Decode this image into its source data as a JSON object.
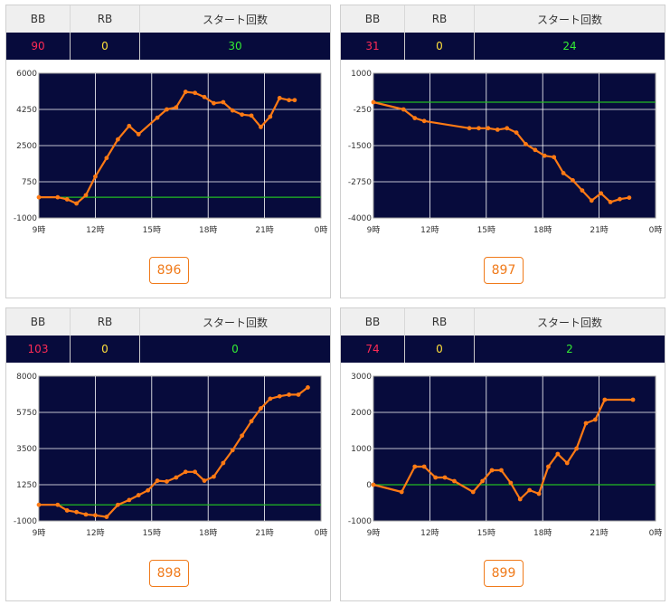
{
  "headers": {
    "bb": "BB",
    "rb": "RB",
    "start": "スタート回数"
  },
  "colors": {
    "plot_bg": "#070b3c",
    "line": "#ff7a14",
    "zero_line": "#22bb22",
    "grid": "#ffffff",
    "bb": "#ff2a55",
    "rb": "#ffe03a",
    "start": "#33ee33",
    "button": "#f07a1a"
  },
  "machines": [
    {
      "number": "896",
      "stats": {
        "bb": "90",
        "rb": "0",
        "start": "30"
      },
      "chart_data": {
        "type": "line",
        "x_tick_labels": [
          "9時",
          "12時",
          "15時",
          "18時",
          "21時",
          "0時"
        ],
        "x_ticks": [
          9,
          12,
          15,
          18,
          21,
          24
        ],
        "y_tick_labels": [
          "6000",
          "4250",
          "2500",
          "750",
          "-1000"
        ],
        "y_ticks": [
          6000,
          4250,
          2500,
          750,
          -1000
        ],
        "xlim": [
          9,
          24
        ],
        "ylim": [
          -1000,
          6000
        ],
        "zero_line": 0,
        "grid": true,
        "series": [
          {
            "x": [
              9,
              10,
              10.5,
              11,
              11.5,
              12,
              12.6,
              13.2,
              13.8,
              14.3,
              15.3,
              15.8,
              16.3,
              16.8,
              17.3,
              17.8,
              18.3,
              18.8,
              19.3,
              19.8,
              20.3,
              20.8,
              21.3,
              21.8,
              22.3,
              22.6
            ],
            "y": [
              0,
              0,
              -100,
              -300,
              100,
              1000,
              1900,
              2800,
              3450,
              3050,
              3850,
              4250,
              4350,
              5100,
              5050,
              4850,
              4550,
              4600,
              4200,
              4000,
              3950,
              3400,
              3900,
              4800,
              4700,
              4700
            ]
          }
        ]
      }
    },
    {
      "number": "897",
      "stats": {
        "bb": "31",
        "rb": "0",
        "start": "24"
      },
      "chart_data": {
        "type": "line",
        "x_tick_labels": [
          "9時",
          "12時",
          "15時",
          "18時",
          "21時",
          "0時"
        ],
        "x_ticks": [
          9,
          12,
          15,
          18,
          21,
          24
        ],
        "y_tick_labels": [
          "1000",
          "-250",
          "-1500",
          "-2750",
          "-4000"
        ],
        "y_ticks": [
          1000,
          -250,
          -1500,
          -2750,
          -4000
        ],
        "xlim": [
          9,
          24
        ],
        "ylim": [
          -4000,
          1000
        ],
        "zero_line": 0,
        "grid": true,
        "series": [
          {
            "x": [
              9,
              10.6,
              11.2,
              11.7,
              14.1,
              14.6,
              15.1,
              15.6,
              16.1,
              16.6,
              17.1,
              17.6,
              18.1,
              18.6,
              19.1,
              19.6,
              20.1,
              20.6,
              21.1,
              21.6,
              22.1,
              22.6
            ],
            "y": [
              0,
              -250,
              -550,
              -650,
              -900,
              -900,
              -900,
              -950,
              -900,
              -1050,
              -1450,
              -1650,
              -1850,
              -1900,
              -2450,
              -2700,
              -3050,
              -3400,
              -3150,
              -3450,
              -3350,
              -3300
            ]
          }
        ]
      }
    },
    {
      "number": "898",
      "stats": {
        "bb": "103",
        "rb": "0",
        "start": "0"
      },
      "chart_data": {
        "type": "line",
        "x_tick_labels": [
          "9時",
          "12時",
          "15時",
          "18時",
          "21時",
          "0時"
        ],
        "x_ticks": [
          9,
          12,
          15,
          18,
          21,
          24
        ],
        "y_tick_labels": [
          "8000",
          "5750",
          "3500",
          "1250",
          "-1000"
        ],
        "y_ticks": [
          8000,
          5750,
          3500,
          1250,
          -1000
        ],
        "xlim": [
          9,
          24
        ],
        "ylim": [
          -1000,
          8000
        ],
        "zero_line": 0,
        "grid": true,
        "series": [
          {
            "x": [
              9,
              10,
              10.5,
              11,
              11.5,
              12,
              12.6,
              13.2,
              13.8,
              14.3,
              14.8,
              15.3,
              15.8,
              16.3,
              16.8,
              17.3,
              17.8,
              18.3,
              18.8,
              19.3,
              19.8,
              20.3,
              20.8,
              21.3,
              21.8,
              22.3,
              22.8,
              23.3
            ],
            "y": [
              0,
              0,
              -350,
              -450,
              -600,
              -650,
              -750,
              0,
              300,
              600,
              900,
              1500,
              1450,
              1700,
              2050,
              2050,
              1500,
              1750,
              2600,
              3400,
              4300,
              5200,
              6000,
              6600,
              6750,
              6850,
              6850,
              7300
            ]
          }
        ]
      }
    },
    {
      "number": "899",
      "stats": {
        "bb": "74",
        "rb": "0",
        "start": "2"
      },
      "chart_data": {
        "type": "line",
        "x_tick_labels": [
          "9時",
          "12時",
          "15時",
          "18時",
          "21時",
          "0時"
        ],
        "x_ticks": [
          9,
          12,
          15,
          18,
          21,
          24
        ],
        "y_tick_labels": [
          "3000",
          "2000",
          "1000",
          "0",
          "-1000"
        ],
        "y_ticks": [
          3000,
          2000,
          1000,
          0,
          -1000
        ],
        "xlim": [
          9,
          24
        ],
        "ylim": [
          -1000,
          3000
        ],
        "zero_line": 0,
        "grid": true,
        "series": [
          {
            "x": [
              9,
              10.5,
              11.2,
              11.7,
              12.3,
              12.8,
              13.3,
              14.3,
              14.8,
              15.3,
              15.8,
              16.3,
              16.8,
              17.3,
              17.8,
              18.3,
              18.8,
              19.3,
              19.8,
              20.3,
              20.8,
              21.3,
              22.8
            ],
            "y": [
              0,
              -200,
              500,
              500,
              200,
              200,
              100,
              -200,
              100,
              400,
              400,
              50,
              -400,
              -150,
              -250,
              500,
              850,
              600,
              1000,
              1700,
              1800,
              2350,
              2350
            ]
          }
        ]
      }
    }
  ]
}
